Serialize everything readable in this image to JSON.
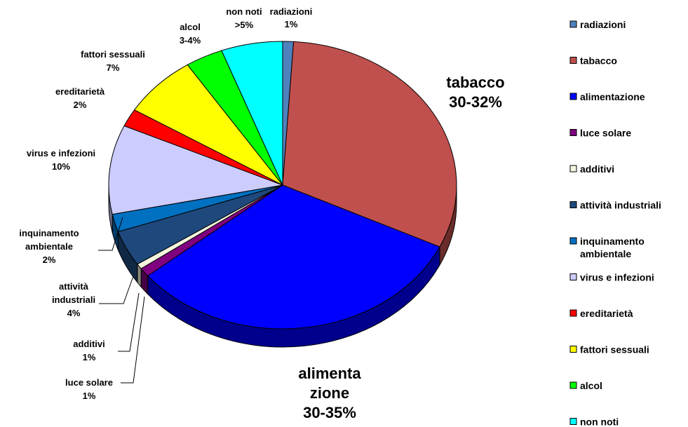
{
  "chart_data": {
    "type": "pie",
    "style": "3d-exploded-pie",
    "legend_position": "right",
    "slices": [
      {
        "name": "radiazioni",
        "value": 1,
        "color": "#4F81BD"
      },
      {
        "name": "tabacco",
        "value": 31,
        "color": "#C0504D"
      },
      {
        "name": "alimentazione",
        "value": 32,
        "color": "#0000FF"
      },
      {
        "name": "luce solare",
        "value": 1,
        "color": "#800080"
      },
      {
        "name": "additivi",
        "value": 0.6,
        "color": "#F5F5E0"
      },
      {
        "name": "attività industriali",
        "value": 4,
        "color": "#1F497D"
      },
      {
        "name": "inquinamento ambientale",
        "value": 2,
        "color": "#0070C0"
      },
      {
        "name": "virus e infezioni",
        "value": 10,
        "color": "#CCCCFF"
      },
      {
        "name": "ereditarietà",
        "value": 2,
        "color": "#FF0000"
      },
      {
        "name": "fattori sessuali",
        "value": 7,
        "color": "#FFFF00"
      },
      {
        "name": "alcol",
        "value": 3.5,
        "color": "#00FF00"
      },
      {
        "name": "non noti",
        "value": 5.7,
        "color": "#00FFFF"
      }
    ],
    "legend": [
      "radiazioni",
      "tabacco",
      "alimentazione",
      "luce solare",
      "additivi",
      "attività industriali",
      "inquinamento\nambientale",
      "virus e infezioni",
      "ereditarietà",
      "fattori sessuali",
      "alcol",
      "non noti"
    ],
    "data_labels": [
      {
        "slice": "radiazioni",
        "lines": [
          "radiazioni",
          "1%"
        ]
      },
      {
        "slice": "tabacco",
        "lines": [
          "tabacco",
          "30-32%"
        ]
      },
      {
        "slice": "alimentazione",
        "lines": [
          "alimenta",
          "zione",
          "30-35%"
        ]
      },
      {
        "slice": "luce solare",
        "lines": [
          "luce solare",
          "1%"
        ]
      },
      {
        "slice": "additivi",
        "lines": [
          "additivi",
          "1%"
        ]
      },
      {
        "slice": "attività industriali",
        "lines": [
          "attività",
          "industriali",
          "4%"
        ]
      },
      {
        "slice": "inquinamento ambientale",
        "lines": [
          "inquinamento",
          "ambientale",
          "2%"
        ]
      },
      {
        "slice": "virus e infezioni",
        "lines": [
          "virus e infezioni",
          "10%"
        ]
      },
      {
        "slice": "ereditarietà",
        "lines": [
          "ereditarietà",
          "2%"
        ]
      },
      {
        "slice": "fattori sessuali",
        "lines": [
          "fattori sessuali",
          "7%"
        ]
      },
      {
        "slice": "alcol",
        "lines": [
          "alcol",
          "3-4%"
        ]
      },
      {
        "slice": "non noti",
        "lines": [
          "non noti",
          ">5%"
        ]
      }
    ]
  }
}
